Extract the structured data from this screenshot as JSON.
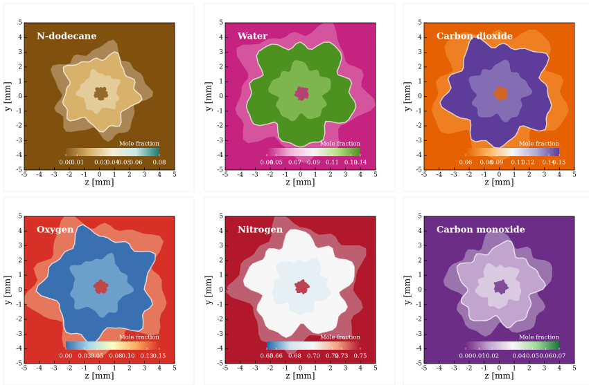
{
  "chart_data": [
    {
      "type": "heatmap",
      "title": "N-dodecane",
      "x_label": "z [mm]",
      "y_label": "y [mm]",
      "xlim": [
        -5,
        5
      ],
      "ylim": [
        -5,
        5
      ],
      "xticks": [
        -5,
        -4,
        -3,
        -2,
        -1,
        0,
        1,
        2,
        3,
        4,
        5
      ],
      "yticks": [
        -5,
        -4,
        -3,
        -2,
        -1,
        0,
        1,
        2,
        3,
        4,
        5
      ],
      "colorbar_label": "Mole fraction",
      "clim": [
        0,
        0.08
      ],
      "cticks": [
        {
          "value": 0,
          "label": "0.00"
        },
        0.01,
        0.03,
        0.04,
        0.05,
        0.06,
        0.08
      ],
      "background": "#80500f",
      "colormap": [
        "#8c5a1a",
        "#d8b26a",
        "#f5ecd5",
        "#c8e8e3",
        "#1a7a70"
      ]
    },
    {
      "type": "heatmap",
      "title": "Water",
      "x_label": "z [mm]",
      "y_label": "y [mm]",
      "xlim": [
        -5,
        5
      ],
      "ylim": [
        -5,
        5
      ],
      "xticks": [
        -5,
        -4,
        -3,
        -2,
        -1,
        0,
        1,
        2,
        3,
        4,
        5
      ],
      "yticks": [
        -5,
        -4,
        -3,
        -2,
        -1,
        0,
        1,
        2,
        3,
        4,
        5
      ],
      "colorbar_label": "Mole fraction",
      "clim": [
        0.04,
        0.14
      ],
      "cticks": [
        0.04,
        0.05,
        0.07,
        0.09,
        0.11,
        0.13,
        0.14
      ],
      "background": "#c5237f",
      "colormap": [
        "#c5237f",
        "#f1b5d9",
        "#f7f7f7",
        "#b8e186",
        "#4d9221"
      ]
    },
    {
      "type": "heatmap",
      "title": "Carbon dioxide",
      "x_label": "z [mm]",
      "y_label": "y [mm]",
      "xlim": [
        -5,
        5
      ],
      "ylim": [
        -5,
        5
      ],
      "xticks": [
        -5,
        -4,
        -3,
        -2,
        -1,
        0,
        1,
        2,
        3,
        4,
        5
      ],
      "yticks": [
        -5,
        -4,
        -3,
        -2,
        -1,
        0,
        1,
        2,
        3,
        4,
        5
      ],
      "colorbar_label": "Mole fraction",
      "clim": [
        0.06,
        0.15
      ],
      "cticks": [
        0.06,
        0.08,
        0.09,
        0.11,
        0.12,
        0.14,
        0.15
      ],
      "background": "#e66101",
      "colormap": [
        "#e66101",
        "#fdb863",
        "#f7f7f7",
        "#b2abd2",
        "#5e3c99"
      ]
    },
    {
      "type": "heatmap",
      "title": "Oxygen",
      "x_label": "z [mm]",
      "y_label": "y [mm]",
      "xlim": [
        -5,
        5
      ],
      "ylim": [
        -5,
        5
      ],
      "xticks": [
        -5,
        -4,
        -3,
        -2,
        -1,
        0,
        1,
        2,
        3,
        4,
        5
      ],
      "yticks": [
        -5,
        -4,
        -3,
        -2,
        -1,
        0,
        1,
        2,
        3,
        4,
        5
      ],
      "colorbar_label": "Mole fraction",
      "clim": [
        0,
        0.15
      ],
      "cticks": [
        {
          "value": 0,
          "label": "0.00"
        },
        0.03,
        0.05,
        0.08,
        {
          "value": 0.1,
          "label": "0.10"
        },
        0.13,
        0.15
      ],
      "background": "#d73027",
      "colormap": [
        "#3a6fb0",
        "#abd9e9",
        "#ffffbf",
        "#fdae61",
        "#d73027"
      ]
    },
    {
      "type": "heatmap",
      "title": "Nitrogen",
      "x_label": "z [mm]",
      "y_label": "y [mm]",
      "xlim": [
        -5,
        5
      ],
      "ylim": [
        -5,
        5
      ],
      "xticks": [
        -5,
        -4,
        -3,
        -2,
        -1,
        0,
        1,
        2,
        3,
        4,
        5
      ],
      "yticks": [
        -5,
        -4,
        -3,
        -2,
        -1,
        0,
        1,
        2,
        3,
        4,
        5
      ],
      "colorbar_label": "Mole fraction",
      "clim": [
        0.65,
        0.75
      ],
      "cticks": [
        0.65,
        0.66,
        0.68,
        {
          "value": 0.7,
          "label": "0.70"
        },
        0.72,
        0.73,
        0.75
      ],
      "background": "#b2182b",
      "colormap": [
        "#2166ac",
        "#d1e5f0",
        "#f7f7f7",
        "#f4a582",
        "#b2182b"
      ]
    },
    {
      "type": "heatmap",
      "title": "Carbon monoxide",
      "x_label": "z [mm]",
      "y_label": "y [mm]",
      "xlim": [
        -5,
        5
      ],
      "ylim": [
        -5,
        5
      ],
      "xticks": [
        -5,
        -4,
        -3,
        -2,
        -1,
        0,
        1,
        2,
        3,
        4,
        5
      ],
      "yticks": [
        -5,
        -4,
        -3,
        -2,
        -1,
        0,
        1,
        2,
        3,
        4,
        5
      ],
      "colorbar_label": "Mole fraction",
      "clim": [
        0,
        0.07
      ],
      "cticks": [
        {
          "value": 0,
          "label": "0.00"
        },
        0.01,
        0.02,
        0.04,
        0.05,
        0.06,
        0.07
      ],
      "background": "#6b2d86",
      "colormap": [
        "#762a83",
        "#c2a5cf",
        "#f7f7f7",
        "#a6dba0",
        "#1b7837"
      ]
    }
  ]
}
